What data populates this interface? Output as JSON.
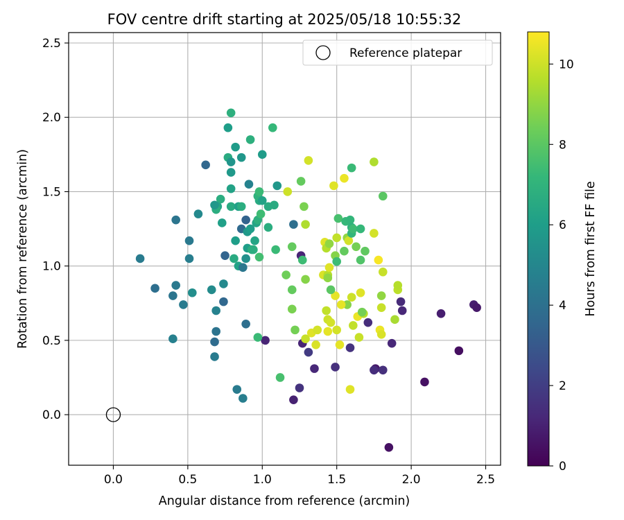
{
  "chart_data": {
    "type": "scatter",
    "title": "FOV centre drift starting at 2025/05/18 10:55:32",
    "xlabel": "Angular distance from reference (arcmin)",
    "ylabel": "Rotation from reference (arcmin)",
    "xlim": [
      -0.3,
      2.6
    ],
    "ylim": [
      -0.34,
      2.57
    ],
    "xticks": [
      0.0,
      0.5,
      1.0,
      1.5,
      2.0,
      2.5
    ],
    "xtick_labels": [
      "0.0",
      "0.5",
      "1.0",
      "1.5",
      "2.0",
      "2.5"
    ],
    "yticks": [
      0.0,
      0.5,
      1.0,
      1.5,
      2.0,
      2.5
    ],
    "ytick_labels": [
      "0.0",
      "0.5",
      "1.0",
      "1.5",
      "2.0",
      "2.5"
    ],
    "grid": true,
    "legend": {
      "position": "top-right",
      "entries": [
        "Reference platepar"
      ]
    },
    "reference_point": {
      "x": 0.0,
      "y": 0.0,
      "marker": "open-circle"
    },
    "colorbar": {
      "label": "Hours from first FF file",
      "min": 0,
      "max": 10.8,
      "ticks": [
        0,
        2,
        4,
        6,
        8,
        10
      ],
      "tick_labels": [
        "0",
        "2",
        "4",
        "6",
        "8",
        "10"
      ],
      "colormap": "viridis",
      "colors": [
        "#440154",
        "#482878",
        "#3e4989",
        "#31688e",
        "#26828e",
        "#1f9e89",
        "#35b779",
        "#6ece58",
        "#b5de2b",
        "#fde725"
      ]
    },
    "points": [
      [
        1.85,
        -0.22,
        0.5
      ],
      [
        0.87,
        0.11,
        4.6
      ],
      [
        0.83,
        0.17,
        4.5
      ],
      [
        1.21,
        0.1,
        1.0
      ],
      [
        1.25,
        0.18,
        1.6
      ],
      [
        1.59,
        0.17,
        10.3
      ],
      [
        2.09,
        0.22,
        0.5
      ],
      [
        1.49,
        0.32,
        1.5
      ],
      [
        1.35,
        0.31,
        1.2
      ],
      [
        1.76,
        0.31,
        0.7
      ],
      [
        1.81,
        0.3,
        1.5
      ],
      [
        1.75,
        0.3,
        1.4
      ],
      [
        1.31,
        0.42,
        1.9
      ],
      [
        1.59,
        0.45,
        1.6
      ],
      [
        2.32,
        0.43,
        0.4
      ],
      [
        1.27,
        0.48,
        1.1
      ],
      [
        1.52,
        0.47,
        10.4
      ],
      [
        1.29,
        0.51,
        9.9
      ],
      [
        1.36,
        0.47,
        10.2
      ],
      [
        1.5,
        0.57,
        10.1
      ],
      [
        1.87,
        0.48,
        1.2
      ],
      [
        1.02,
        0.5,
        1.1
      ],
      [
        0.97,
        0.52,
        7.3
      ],
      [
        1.65,
        0.52,
        9.9
      ],
      [
        1.12,
        0.25,
        7.6
      ],
      [
        1.22,
        0.57,
        8.5
      ],
      [
        1.33,
        0.55,
        10.3
      ],
      [
        1.37,
        0.57,
        10.1
      ],
      [
        1.44,
        0.56,
        10.4
      ],
      [
        1.44,
        0.64,
        10.0
      ],
      [
        1.61,
        0.6,
        9.8
      ],
      [
        1.79,
        0.57,
        10.5
      ],
      [
        1.8,
        0.54,
        10.2
      ],
      [
        1.89,
        0.64,
        9.4
      ],
      [
        1.71,
        0.62,
        1.4
      ],
      [
        2.2,
        0.68,
        0.9
      ],
      [
        2.42,
        0.74,
        0.9
      ],
      [
        2.44,
        0.72,
        0.7
      ],
      [
        1.93,
        0.76,
        1.3
      ],
      [
        1.94,
        0.7,
        1.2
      ],
      [
        1.46,
        0.62,
        10.1
      ],
      [
        1.43,
        0.7,
        9.8
      ],
      [
        1.57,
        0.74,
        8.8
      ],
      [
        1.53,
        0.74,
        10.4
      ],
      [
        1.6,
        0.79,
        10.0
      ],
      [
        1.66,
        0.82,
        10.3
      ],
      [
        1.64,
        0.66,
        10.5
      ],
      [
        1.68,
        0.68,
        9.6
      ],
      [
        1.67,
        0.69,
        8.5
      ],
      [
        1.8,
        0.8,
        9.0
      ],
      [
        1.8,
        0.72,
        9.9
      ],
      [
        1.91,
        0.84,
        9.7
      ],
      [
        1.91,
        0.87,
        9.6
      ],
      [
        1.49,
        0.8,
        10.4
      ],
      [
        1.46,
        0.84,
        8.0
      ],
      [
        1.29,
        0.91,
        8.8
      ],
      [
        1.41,
        0.94,
        10.2
      ],
      [
        1.44,
        0.94,
        9.6
      ],
      [
        1.45,
        0.99,
        10.3
      ],
      [
        1.44,
        0.92,
        9.0
      ],
      [
        1.16,
        0.94,
        8.4
      ],
      [
        1.2,
        0.84,
        8.2
      ],
      [
        1.2,
        0.71,
        8.6
      ],
      [
        1.26,
        1.07,
        1.1
      ],
      [
        1.27,
        1.04,
        7.4
      ],
      [
        1.2,
        1.13,
        8.2
      ],
      [
        1.09,
        1.11,
        7.3
      ],
      [
        0.98,
        1.06,
        7.5
      ],
      [
        0.94,
        1.11,
        6.8
      ],
      [
        0.9,
        1.12,
        6.0
      ],
      [
        0.93,
        1.11,
        6.7
      ],
      [
        0.84,
        1.0,
        6.2
      ],
      [
        0.87,
        0.99,
        4.3
      ],
      [
        0.89,
        1.05,
        5.4
      ],
      [
        0.81,
        1.05,
        6.6
      ],
      [
        0.75,
        1.07,
        3.5
      ],
      [
        0.82,
        1.17,
        6.0
      ],
      [
        0.86,
        1.25,
        3.7
      ],
      [
        0.89,
        1.31,
        3.4
      ],
      [
        0.9,
        1.23,
        5.8
      ],
      [
        0.92,
        1.25,
        6.0
      ],
      [
        0.96,
        1.29,
        6.3
      ],
      [
        0.97,
        1.31,
        6.8
      ],
      [
        0.99,
        1.35,
        7.4
      ],
      [
        0.98,
        1.44,
        6.6
      ],
      [
        0.97,
        1.47,
        6.9
      ],
      [
        0.98,
        1.5,
        7.3
      ],
      [
        1.0,
        1.44,
        6.2
      ],
      [
        1.04,
        1.4,
        6.6
      ],
      [
        1.04,
        1.26,
        6.7
      ],
      [
        1.08,
        1.41,
        6.6
      ],
      [
        1.1,
        1.54,
        5.7
      ],
      [
        1.17,
        1.5,
        10.0
      ],
      [
        1.26,
        1.57,
        8.2
      ],
      [
        1.28,
        1.4,
        8.6
      ],
      [
        1.29,
        1.28,
        9.5
      ],
      [
        1.42,
        1.16,
        10.3
      ],
      [
        1.43,
        1.12,
        9.6
      ],
      [
        1.45,
        1.15,
        9.0
      ],
      [
        1.49,
        1.07,
        8.8
      ],
      [
        1.5,
        1.03,
        7.4
      ],
      [
        1.5,
        1.19,
        9.8
      ],
      [
        1.51,
        1.32,
        7.6
      ],
      [
        1.55,
        1.1,
        8.2
      ],
      [
        1.56,
        1.3,
        7.2
      ],
      [
        1.57,
        1.19,
        9.0
      ],
      [
        1.58,
        1.17,
        10.1
      ],
      [
        1.59,
        1.31,
        7.1
      ],
      [
        1.6,
        1.26,
        6.9
      ],
      [
        1.6,
        1.22,
        7.1
      ],
      [
        1.61,
        1.25,
        7.4
      ],
      [
        1.63,
        1.13,
        8.5
      ],
      [
        1.66,
        1.25,
        7.2
      ],
      [
        1.66,
        1.04,
        7.8
      ],
      [
        1.69,
        1.1,
        8.1
      ],
      [
        1.75,
        1.22,
        10.1
      ],
      [
        1.78,
        1.04,
        10.7
      ],
      [
        1.81,
        0.96,
        9.9
      ],
      [
        1.81,
        1.47,
        8.0
      ],
      [
        1.75,
        1.7,
        9.5
      ],
      [
        1.6,
        1.66,
        7.3
      ],
      [
        1.55,
        1.59,
        10.5
      ],
      [
        1.48,
        1.54,
        10.3
      ],
      [
        1.31,
        1.71,
        10.1
      ],
      [
        1.07,
        1.93,
        7.2
      ],
      [
        1.0,
        1.75,
        5.9
      ],
      [
        0.92,
        1.85,
        6.8
      ],
      [
        0.86,
        1.73,
        5.7
      ],
      [
        0.82,
        1.8,
        5.9
      ],
      [
        0.77,
        1.73,
        6.6
      ],
      [
        0.79,
        1.7,
        5.6
      ],
      [
        0.79,
        1.63,
        5.8
      ],
      [
        0.79,
        1.52,
        6.2
      ],
      [
        0.77,
        1.93,
        6.0
      ],
      [
        0.79,
        2.03,
        6.8
      ],
      [
        0.62,
        1.68,
        3.6
      ],
      [
        0.57,
        1.35,
        5.1
      ],
      [
        0.72,
        1.45,
        6.7
      ],
      [
        0.7,
        1.4,
        6.3
      ],
      [
        0.69,
        1.38,
        6.7
      ],
      [
        0.68,
        1.41,
        5.7
      ],
      [
        0.73,
        1.29,
        6.1
      ],
      [
        0.79,
        1.4,
        6.6
      ],
      [
        0.84,
        1.4,
        6.1
      ],
      [
        0.86,
        1.4,
        6.7
      ],
      [
        0.91,
        1.55,
        4.8
      ],
      [
        1.21,
        1.28,
        3.9
      ],
      [
        0.95,
        1.17,
        6.3
      ],
      [
        0.51,
        1.17,
        4.4
      ],
      [
        0.51,
        1.05,
        4.6
      ],
      [
        0.18,
        1.05,
        4.5
      ],
      [
        0.28,
        0.85,
        3.9
      ],
      [
        0.42,
        0.87,
        4.4
      ],
      [
        0.4,
        0.8,
        4.2
      ],
      [
        0.47,
        0.74,
        4.5
      ],
      [
        0.53,
        0.82,
        5.3
      ],
      [
        0.66,
        0.84,
        5.2
      ],
      [
        0.69,
        0.7,
        4.8
      ],
      [
        0.74,
        0.76,
        3.6
      ],
      [
        0.74,
        0.88,
        5.1
      ],
      [
        0.69,
        0.56,
        4.1
      ],
      [
        0.68,
        0.49,
        3.8
      ],
      [
        0.68,
        0.39,
        4.5
      ],
      [
        0.4,
        0.51,
        4.7
      ],
      [
        0.89,
        0.61,
        3.9
      ],
      [
        0.42,
        1.31,
        4.2
      ]
    ]
  }
}
